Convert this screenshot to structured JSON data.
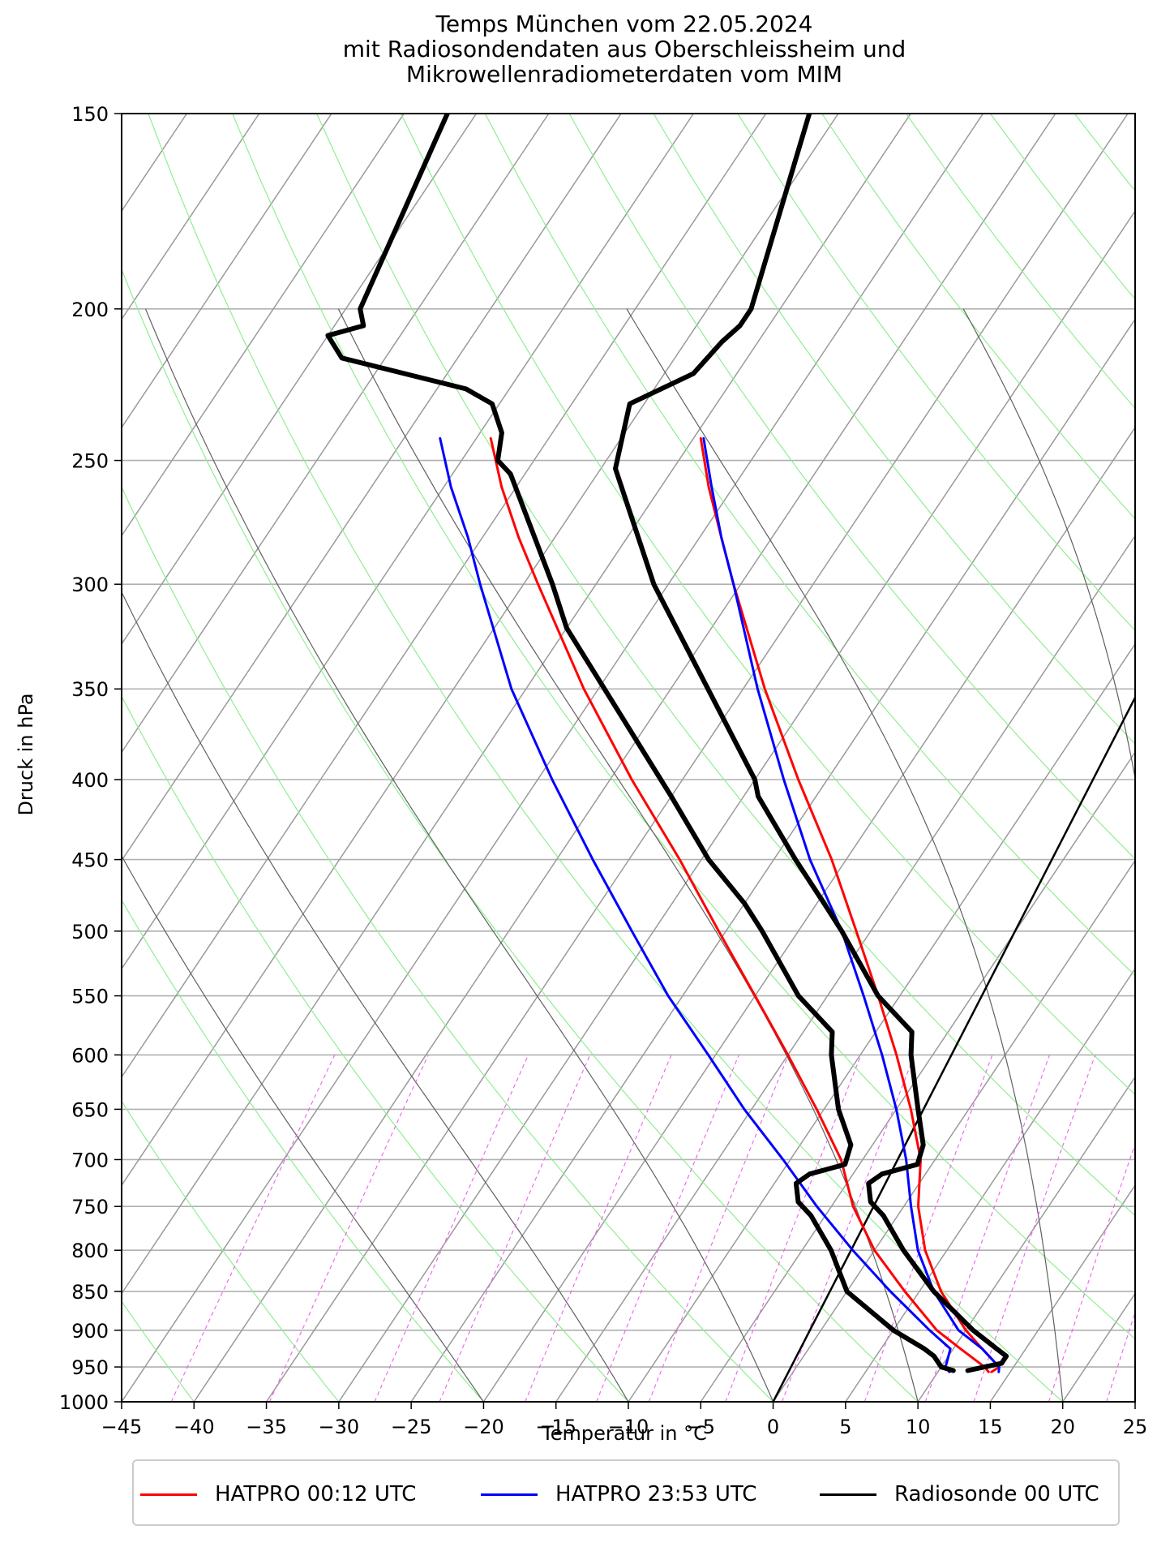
{
  "chart_data": {
    "type": "line",
    "subtype": "skew-T log-p diagram",
    "title_lines": [
      "Temps München vom 22.05.2024",
      "mit Radiosondendaten aus Oberschleissheim und",
      "Mikrowellenradiometerdaten vom MIM"
    ],
    "xlabel": "Temperatur in ",
    "xlabel_unit": "°C",
    "ylabel": "Druck in hPa",
    "xlim": [
      -45,
      25
    ],
    "ylim": [
      1000,
      150
    ],
    "x_ticks": [
      "−45",
      "−40",
      "−35",
      "−30",
      "−25",
      "−20",
      "−15",
      "−10",
      "−5",
      "0",
      "5",
      "10",
      "15",
      "20",
      "25"
    ],
    "y_ticks": [
      150,
      200,
      250,
      300,
      350,
      400,
      450,
      500,
      550,
      600,
      650,
      700,
      750,
      800,
      850,
      900,
      950,
      1000
    ],
    "grid": true,
    "legend_position": "bottom",
    "series": [
      {
        "name": "HATPRO 00:12 UTC",
        "color": "#ff0000",
        "temperature": [
          [
            957,
            13.7
          ],
          [
            950,
            14.0
          ],
          [
            925,
            12.0
          ],
          [
            900,
            10.0
          ],
          [
            850,
            6.5
          ],
          [
            800,
            3.5
          ],
          [
            750,
            1.0
          ],
          [
            700,
            -1.0
          ],
          [
            650,
            -4.0
          ],
          [
            600,
            -7.5
          ],
          [
            550,
            -11.5
          ],
          [
            500,
            -16.0
          ],
          [
            450,
            -21.0
          ],
          [
            400,
            -27.0
          ],
          [
            350,
            -33.5
          ],
          [
            300,
            -40.5
          ],
          [
            280,
            -43.5
          ],
          [
            260,
            -46.7
          ],
          [
            242,
            -49.5
          ]
        ],
        "dewpoint": [
          [
            957,
            13.5
          ],
          [
            950,
            13.0
          ],
          [
            925,
            10.5
          ],
          [
            900,
            8.0
          ],
          [
            850,
            4.0
          ],
          [
            800,
            0.0
          ],
          [
            750,
            -3.5
          ],
          [
            700,
            -6.5
          ],
          [
            650,
            -10.5
          ],
          [
            600,
            -15.0
          ],
          [
            550,
            -20.0
          ],
          [
            500,
            -25.5
          ],
          [
            450,
            -31.5
          ],
          [
            400,
            -38.5
          ],
          [
            350,
            -46.0
          ],
          [
            300,
            -54.0
          ],
          [
            280,
            -57.5
          ],
          [
            260,
            -61.0
          ],
          [
            242,
            -64.0
          ]
        ]
      },
      {
        "name": "HATPRO 23:53 UTC",
        "color": "#0000ff",
        "temperature": [
          [
            957,
            14.2
          ],
          [
            950,
            14.0
          ],
          [
            925,
            12.0
          ],
          [
            900,
            9.5
          ],
          [
            850,
            6.0
          ],
          [
            800,
            3.0
          ],
          [
            750,
            0.5
          ],
          [
            700,
            -2.0
          ],
          [
            650,
            -5.0
          ],
          [
            600,
            -8.5
          ],
          [
            550,
            -12.5
          ],
          [
            500,
            -17.0
          ],
          [
            450,
            -22.5
          ],
          [
            400,
            -28.0
          ],
          [
            350,
            -34.0
          ],
          [
            300,
            -40.5
          ],
          [
            280,
            -43.5
          ],
          [
            260,
            -46.5
          ],
          [
            242,
            -49.3
          ]
        ],
        "dewpoint": [
          [
            957,
            10.8
          ],
          [
            950,
            10.3
          ],
          [
            925,
            9.8
          ],
          [
            900,
            7.5
          ],
          [
            850,
            3.0
          ],
          [
            800,
            -1.5
          ],
          [
            750,
            -6.0
          ],
          [
            700,
            -10.5
          ],
          [
            650,
            -15.5
          ],
          [
            600,
            -20.5
          ],
          [
            550,
            -26.0
          ],
          [
            500,
            -31.5
          ],
          [
            450,
            -37.5
          ],
          [
            400,
            -44.0
          ],
          [
            350,
            -51.0
          ],
          [
            300,
            -58.0
          ],
          [
            280,
            -61.0
          ],
          [
            260,
            -64.5
          ],
          [
            242,
            -67.5
          ]
        ]
      },
      {
        "name": "Radiosonde 00 UTC",
        "color": "#000000",
        "temperature": [
          [
            955,
            12.0
          ],
          [
            945,
            14.0
          ],
          [
            935,
            14.0
          ],
          [
            925,
            13.0
          ],
          [
            900,
            10.5
          ],
          [
            850,
            6.0
          ],
          [
            800,
            2.0
          ],
          [
            760,
            -1.0
          ],
          [
            745,
            -2.5
          ],
          [
            725,
            -3.5
          ],
          [
            715,
            -3.0
          ],
          [
            705,
            -1.0
          ],
          [
            685,
            -1.5
          ],
          [
            650,
            -3.5
          ],
          [
            600,
            -6.5
          ],
          [
            580,
            -7.5
          ],
          [
            550,
            -11.5
          ],
          [
            500,
            -17.0
          ],
          [
            480,
            -19.5
          ],
          [
            450,
            -23.5
          ],
          [
            410,
            -29.0
          ],
          [
            400,
            -30.0
          ],
          [
            300,
            -46.0
          ],
          [
            253,
            -54.0
          ],
          [
            230,
            -56.0
          ],
          [
            220,
            -53.0
          ],
          [
            210,
            -52.5
          ],
          [
            205,
            -52.0
          ],
          [
            200,
            -52.0
          ],
          [
            150,
            -57.0
          ]
        ],
        "dewpoint": [
          [
            955,
            11.0
          ],
          [
            950,
            10.0
          ],
          [
            935,
            9.0
          ],
          [
            925,
            8.0
          ],
          [
            900,
            5.0
          ],
          [
            850,
            0.0
          ],
          [
            800,
            -3.0
          ],
          [
            760,
            -6.0
          ],
          [
            745,
            -7.5
          ],
          [
            725,
            -8.5
          ],
          [
            715,
            -8.0
          ],
          [
            705,
            -6.0
          ],
          [
            685,
            -6.5
          ],
          [
            650,
            -9.0
          ],
          [
            600,
            -12.0
          ],
          [
            580,
            -13.0
          ],
          [
            550,
            -17.0
          ],
          [
            500,
            -22.5
          ],
          [
            480,
            -25.0
          ],
          [
            450,
            -29.5
          ],
          [
            410,
            -35.0
          ],
          [
            400,
            -36.5
          ],
          [
            320,
            -50.0
          ],
          [
            300,
            -53.0
          ],
          [
            255,
            -61.0
          ],
          [
            250,
            -62.5
          ],
          [
            240,
            -63.5
          ],
          [
            230,
            -65.5
          ],
          [
            225,
            -68.0
          ],
          [
            215,
            -78.0
          ],
          [
            208,
            -80.0
          ],
          [
            205,
            -78.0
          ],
          [
            200,
            -79.0
          ],
          [
            150,
            -82.0
          ]
        ]
      }
    ],
    "annotation": {
      "name": "Thermometerlinie 0 °C isotherm",
      "color": "#000000"
    }
  }
}
